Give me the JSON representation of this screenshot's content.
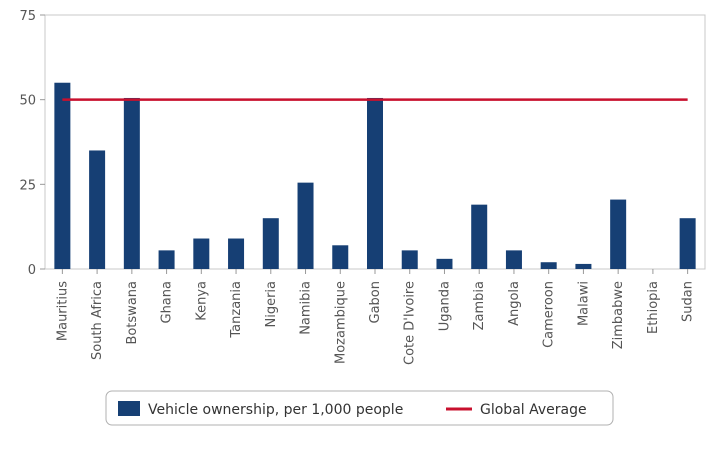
{
  "chart_data": {
    "type": "bar",
    "title": "",
    "xlabel": "",
    "ylabel": "",
    "ylim": [
      0,
      75
    ],
    "yticks": [
      0,
      25,
      50,
      75
    ],
    "grid": false,
    "legend_position": "bottom-center",
    "categories": [
      "Mauritius",
      "South Africa",
      "Botswana",
      "Ghana",
      "Kenya",
      "Tanzania",
      "Nigeria",
      "Namibia",
      "Mozambique",
      "Gabon",
      "Cote D'Ivoire",
      "Uganda",
      "Zambia",
      "Angola",
      "Cameroon",
      "Malawi",
      "Zimbabwe",
      "Ethiopia",
      "Sudan"
    ],
    "series": [
      {
        "name": "Vehicle ownership, per 1,000 people",
        "type": "bar",
        "color": "#163f74",
        "values": [
          55,
          35,
          50.5,
          5.5,
          9,
          9,
          15,
          25.5,
          7,
          50.5,
          5.5,
          3,
          19,
          5.5,
          2,
          1.5,
          20.5,
          0,
          15
        ]
      },
      {
        "name": "Global Average",
        "type": "line",
        "color": "#c8102e",
        "value": 50
      }
    ]
  }
}
